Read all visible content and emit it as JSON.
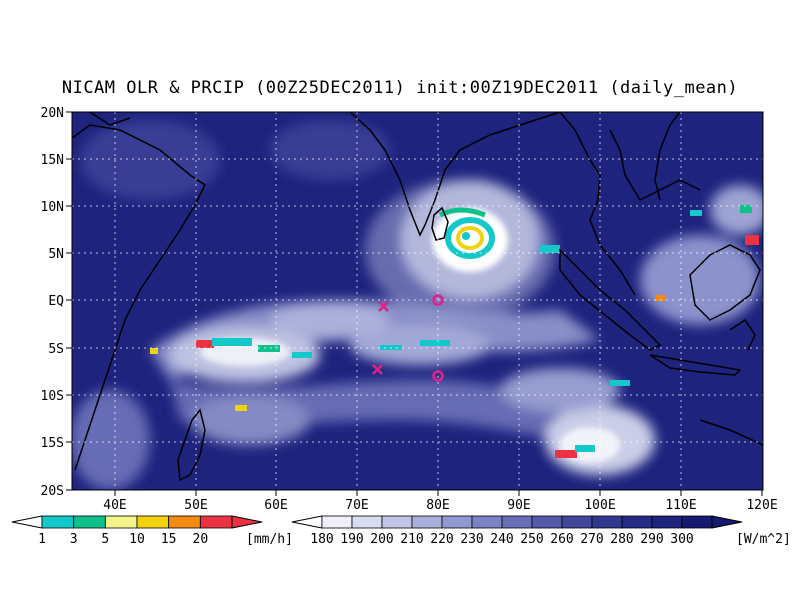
{
  "title": "NICAM OLR & PRCIP (00Z25DEC2011) init:00Z19DEC2011 (daily_mean)",
  "map": {
    "lat_labels": [
      "20N",
      "15N",
      "10N",
      "5N",
      "EQ",
      "5S",
      "10S",
      "15S",
      "20S"
    ],
    "lat_values": [
      20,
      15,
      10,
      5,
      0,
      -5,
      -10,
      -15,
      -20
    ],
    "lon_labels": [
      "40E",
      "50E",
      "60E",
      "70E",
      "80E",
      "90E",
      "100E",
      "110E",
      "120E"
    ],
    "lon_values": [
      40,
      50,
      60,
      70,
      80,
      90,
      100,
      110,
      120
    ],
    "lon_range": [
      35,
      120
    ],
    "lat_range": [
      -20,
      20
    ],
    "grid": "dotted",
    "ocean_color": "#1e237e",
    "markers": [
      {
        "type": "x",
        "lon": 73.3,
        "lat": -0.7,
        "color": "#e0218a"
      },
      {
        "type": "x",
        "lon": 72.6,
        "lat": -7.3,
        "color": "#e0218a"
      },
      {
        "type": "o",
        "lon": 80,
        "lat": 0,
        "color": "#e0218a"
      },
      {
        "type": "o",
        "lon": 80,
        "lat": -8,
        "color": "#e0218a"
      }
    ]
  },
  "precip_legend": {
    "labels": [
      "1",
      "3",
      "5",
      "10",
      "15",
      "20"
    ],
    "unit": "[mm/h]",
    "colors": [
      "#12c8c8",
      "#10c08a",
      "#f4f48c",
      "#f2d20e",
      "#f28a14",
      "#ea3240"
    ]
  },
  "olr_legend": {
    "labels": [
      "180",
      "190",
      "200",
      "210",
      "220",
      "230",
      "240",
      "250",
      "260",
      "270",
      "280",
      "290",
      "300"
    ],
    "unit": "[W/m^2]",
    "colors": [
      "#f0f0f8",
      "#d8dcf0",
      "#c2c6e6",
      "#aab0dc",
      "#9298d0",
      "#7c82c4",
      "#686eb8",
      "#5459aa",
      "#42479c",
      "#32378f",
      "#262b85",
      "#1e237e",
      "#161a70"
    ]
  }
}
